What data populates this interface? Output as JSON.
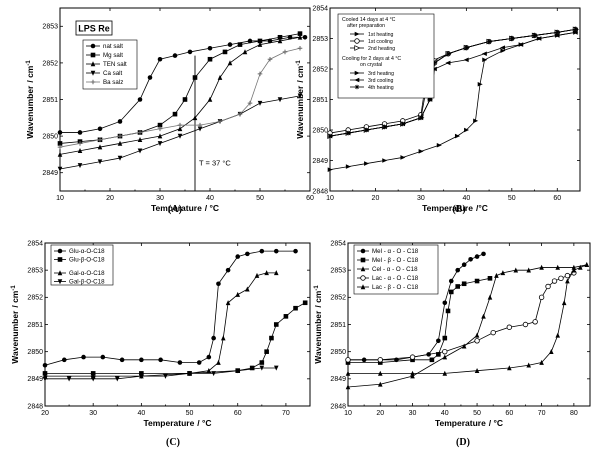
{
  "chart_data": [
    {
      "type": "line",
      "panel_label": "(A)",
      "title": "LPS Re",
      "xlabel": "Temperature",
      "xunit": "/ °C",
      "ylabel": "Wavenumber",
      "yunit": "/ cm",
      "yunit_sup": "-1",
      "xlim": [
        10,
        60
      ],
      "ylim": [
        2848.5,
        2853.5
      ],
      "xticks": [
        10,
        20,
        30,
        40,
        50,
        60
      ],
      "yticks": [
        2849,
        2850,
        2851,
        2852,
        2853
      ],
      "annotation": {
        "text": "T = 37 °C",
        "x": 37
      },
      "legend": {
        "position": "top-center"
      },
      "series": [
        {
          "name": "nat salt",
          "marker": "circle",
          "x": [
            10,
            14,
            18,
            22,
            26,
            28,
            30,
            33,
            36,
            40,
            44,
            48,
            52,
            56,
            59
          ],
          "y": [
            2850.1,
            2850.1,
            2850.2,
            2850.4,
            2851,
            2851.6,
            2852.1,
            2852.2,
            2852.3,
            2852.4,
            2852.5,
            2852.6,
            2852.6,
            2852.7,
            2852.7
          ]
        },
        {
          "name": "Mg salt",
          "marker": "square",
          "x": [
            10,
            14,
            18,
            22,
            26,
            30,
            33,
            35,
            37,
            40,
            43,
            46,
            50,
            54,
            58
          ],
          "y": [
            2849.8,
            2849.85,
            2849.9,
            2850,
            2850.1,
            2850.3,
            2850.6,
            2851,
            2851.6,
            2852.1,
            2852.3,
            2852.5,
            2852.6,
            2852.7,
            2852.8
          ]
        },
        {
          "name": "TEN salt",
          "marker": "triangle-up",
          "x": [
            10,
            14,
            18,
            22,
            26,
            30,
            34,
            37,
            40,
            42,
            44,
            47,
            50,
            54,
            58
          ],
          "y": [
            2849.5,
            2849.6,
            2849.7,
            2849.8,
            2849.9,
            2850,
            2850.2,
            2850.5,
            2851,
            2851.6,
            2852,
            2852.3,
            2852.5,
            2852.6,
            2852.7
          ]
        },
        {
          "name": "Ca salt",
          "marker": "triangle-down",
          "x": [
            10,
            14,
            18,
            22,
            26,
            30,
            34,
            38,
            42,
            46,
            50,
            54,
            58
          ],
          "y": [
            2849.1,
            2849.2,
            2849.3,
            2849.4,
            2849.6,
            2849.8,
            2850,
            2850.2,
            2850.4,
            2850.6,
            2850.9,
            2851,
            2851.1
          ]
        },
        {
          "name": "Ba salz",
          "marker": "plus",
          "x": [
            10,
            14,
            18,
            22,
            26,
            30,
            34,
            38,
            42,
            46,
            48,
            50,
            52,
            55,
            58
          ],
          "y": [
            2849.7,
            2849.8,
            2849.9,
            2850,
            2850.1,
            2850.2,
            2850.3,
            2850.3,
            2850.4,
            2850.6,
            2850.9,
            2851.7,
            2852.1,
            2852.3,
            2852.4
          ]
        }
      ]
    },
    {
      "type": "line",
      "panel_label": "(B)",
      "xlabel": "Temperature",
      "xunit": "/°C",
      "ylabel": "Wavenumber",
      "yunit": "/ cm",
      "yunit_sup": "-1",
      "xlim": [
        10,
        65
      ],
      "ylim": [
        2848,
        2854
      ],
      "xticks": [
        10,
        20,
        30,
        40,
        50,
        60
      ],
      "yticks": [
        2848,
        2849,
        2850,
        2851,
        2852,
        2853,
        2854
      ],
      "legend": {
        "position": "top-left",
        "headers": [
          "Cooled 14 days at 4 °C",
          "after preparation",
          "Cooling for 2 days at 4 °C",
          "on crystal"
        ]
      },
      "series": [
        {
          "name": "1st heating",
          "group": 0,
          "marker": "triangle-right",
          "x": [
            10,
            14,
            18,
            22,
            26,
            30,
            32,
            33,
            36,
            40,
            45,
            50,
            55,
            60,
            64
          ],
          "y": [
            2849.8,
            2849.9,
            2850,
            2850.1,
            2850.2,
            2850.4,
            2851,
            2852.2,
            2852.5,
            2852.7,
            2852.9,
            2853,
            2853.1,
            2853.2,
            2853.3
          ]
        },
        {
          "name": "1st cooling",
          "group": 0,
          "marker": "open-circle",
          "x": [
            64,
            60,
            55,
            50,
            45,
            40,
            36,
            33,
            31,
            30,
            26,
            22,
            18,
            14,
            10
          ],
          "y": [
            2853.3,
            2853.2,
            2853.1,
            2853,
            2852.9,
            2852.7,
            2852.5,
            2852.2,
            2851.5,
            2850.5,
            2850.3,
            2850.2,
            2850.1,
            2850,
            2849.9
          ]
        },
        {
          "name": "2nd heating",
          "group": 0,
          "marker": "open-triangle-right",
          "x": [
            10,
            14,
            18,
            22,
            26,
            30,
            31,
            33,
            36,
            40,
            45,
            50,
            55,
            60,
            64
          ],
          "y": [
            2849.8,
            2849.9,
            2850,
            2850.1,
            2850.2,
            2850.4,
            2851.2,
            2852.3,
            2852.5,
            2852.7,
            2852.9,
            2853,
            2853.1,
            2853.2,
            2853.3
          ]
        },
        {
          "name": "3rd heating",
          "group": 1,
          "marker": "triangle-right",
          "x": [
            10,
            14,
            18,
            22,
            26,
            30,
            34,
            38,
            40,
            42,
            43,
            44,
            48,
            52,
            56,
            60,
            64
          ],
          "y": [
            2848.7,
            2848.8,
            2848.9,
            2849,
            2849.1,
            2849.3,
            2849.5,
            2849.8,
            2850,
            2850.3,
            2851.5,
            2852.3,
            2852.6,
            2852.8,
            2853,
            2853.1,
            2853.2
          ]
        },
        {
          "name": "3rd cooling",
          "group": 1,
          "marker": "triangle-left",
          "x": [
            64,
            60,
            56,
            52,
            48,
            44,
            40,
            36,
            33,
            32,
            30,
            26,
            22,
            18,
            14,
            10
          ],
          "y": [
            2853.2,
            2853.1,
            2853,
            2852.8,
            2852.7,
            2852.5,
            2852.3,
            2852.2,
            2852,
            2851,
            2850.4,
            2850.2,
            2850.1,
            2850,
            2849.9,
            2849.8
          ]
        },
        {
          "name": "4th heating",
          "group": 1,
          "marker": "star",
          "x": [
            10,
            14,
            18,
            22,
            26,
            30,
            32,
            33,
            36,
            40,
            45,
            50,
            55,
            60,
            64
          ],
          "y": [
            2849.8,
            2849.9,
            2850,
            2850.1,
            2850.2,
            2850.4,
            2851,
            2852.2,
            2852.5,
            2852.7,
            2852.9,
            2853,
            2853.1,
            2853.2,
            2853.3
          ]
        }
      ]
    },
    {
      "type": "line",
      "panel_label": "(C)",
      "xlabel": "Temperature",
      "xunit": "/ °C",
      "ylabel": "Wavenumber",
      "yunit": "/ cm",
      "yunit_sup": "-1",
      "xlim": [
        20,
        75
      ],
      "ylim": [
        2848,
        2854
      ],
      "xticks": [
        20,
        30,
        40,
        50,
        60,
        70
      ],
      "yticks": [
        2848,
        2849,
        2850,
        2851,
        2852,
        2853,
        2854
      ],
      "legend": {
        "position": "top-left"
      },
      "series": [
        {
          "name": "Glu-α-O-C18",
          "marker": "circle",
          "x": [
            20,
            24,
            28,
            32,
            36,
            40,
            44,
            48,
            52,
            54,
            55,
            56,
            58,
            60,
            62,
            65,
            68,
            72
          ],
          "y": [
            2849.5,
            2849.7,
            2849.8,
            2849.8,
            2849.7,
            2849.7,
            2849.7,
            2849.6,
            2849.6,
            2849.8,
            2850.5,
            2852.5,
            2853,
            2853.5,
            2853.6,
            2853.7,
            2853.7,
            2853.7
          ]
        },
        {
          "name": "Glu-β-O-C18",
          "marker": "square",
          "x": [
            20,
            30,
            40,
            50,
            60,
            63,
            65,
            66,
            67,
            68,
            70,
            72,
            74
          ],
          "y": [
            2849.2,
            2849.2,
            2849.2,
            2849.2,
            2849.3,
            2849.4,
            2849.6,
            2850,
            2850.5,
            2851,
            2851.3,
            2851.6,
            2851.8
          ]
        },
        {
          "name": "Gal-α-O-C18",
          "marker": "triangle-up",
          "x": [
            20,
            30,
            40,
            50,
            54,
            56,
            57,
            58,
            60,
            62,
            64,
            66,
            68
          ],
          "y": [
            2849.1,
            2849.1,
            2849.1,
            2849.2,
            2849.3,
            2849.6,
            2850.5,
            2851.8,
            2852.1,
            2852.3,
            2852.8,
            2852.9,
            2852.9
          ]
        },
        {
          "name": "Gal-β-O-C18",
          "marker": "triangle-down",
          "x": [
            20,
            25,
            30,
            35,
            40,
            45,
            50,
            55,
            60,
            65,
            68
          ],
          "y": [
            2849,
            2849,
            2849,
            2849,
            2849.1,
            2849.1,
            2849.2,
            2849.2,
            2849.3,
            2849.4,
            2849.4
          ]
        }
      ]
    },
    {
      "type": "line",
      "panel_label": "(D)",
      "xlabel": "Temperature",
      "xunit": "/ °C",
      "ylabel": "Wavenumber",
      "yunit": "/ cm",
      "yunit_sup": "-1",
      "xlim": [
        10,
        85
      ],
      "ylim": [
        2848,
        2854
      ],
      "xticks": [
        10,
        20,
        30,
        40,
        50,
        60,
        70,
        80
      ],
      "yticks": [
        2848,
        2849,
        2850,
        2851,
        2852,
        2853,
        2854
      ],
      "legend": {
        "position": "top-left"
      },
      "series": [
        {
          "name": "Mel - α - O - C18",
          "marker": "circle",
          "x": [
            10,
            15,
            20,
            25,
            30,
            35,
            38,
            40,
            42,
            44,
            46,
            48,
            50,
            52
          ],
          "y": [
            2849.7,
            2849.7,
            2849.7,
            2849.7,
            2849.8,
            2849.9,
            2850.4,
            2851.8,
            2852.6,
            2853,
            2853.2,
            2853.4,
            2853.5,
            2853.6
          ]
        },
        {
          "name": "Mel - β - O - C18",
          "marker": "square",
          "x": [
            10,
            20,
            30,
            36,
            38,
            40,
            41,
            42,
            44,
            46,
            50,
            54
          ],
          "y": [
            2849.6,
            2849.6,
            2849.7,
            2849.7,
            2849.9,
            2850.5,
            2851.5,
            2852.2,
            2852.4,
            2852.5,
            2852.6,
            2852.7
          ]
        },
        {
          "name": "Cel - α - O - C18",
          "marker": "triangle-up",
          "x": [
            10,
            20,
            30,
            40,
            46,
            50,
            52,
            54,
            56,
            58,
            62,
            66,
            70,
            75,
            80,
            84
          ],
          "y": [
            2848.7,
            2848.8,
            2849.1,
            2849.8,
            2850.2,
            2850.6,
            2851.3,
            2852,
            2852.8,
            2852.9,
            2853,
            2853,
            2853.1,
            2853.1,
            2853.1,
            2853.2
          ]
        },
        {
          "name": "Lac - α - O - C18",
          "marker": "open-circle",
          "x": [
            10,
            20,
            30,
            40,
            50,
            55,
            60,
            65,
            68,
            70,
            72,
            74,
            76,
            78,
            80
          ],
          "y": [
            2849.7,
            2849.7,
            2849.8,
            2850,
            2850.4,
            2850.7,
            2850.9,
            2851,
            2851.1,
            2852,
            2852.4,
            2852.6,
            2852.7,
            2852.8,
            2852.9
          ]
        },
        {
          "name": "Lac - β - O - C18",
          "marker": "triangle-up",
          "x": [
            10,
            20,
            30,
            40,
            50,
            60,
            66,
            70,
            73,
            75,
            77,
            78,
            80,
            82,
            84
          ],
          "y": [
            2849.2,
            2849.2,
            2849.2,
            2849.2,
            2849.3,
            2849.4,
            2849.5,
            2849.6,
            2850,
            2850.6,
            2851.8,
            2852.6,
            2853,
            2853.1,
            2853.2
          ]
        }
      ]
    }
  ]
}
